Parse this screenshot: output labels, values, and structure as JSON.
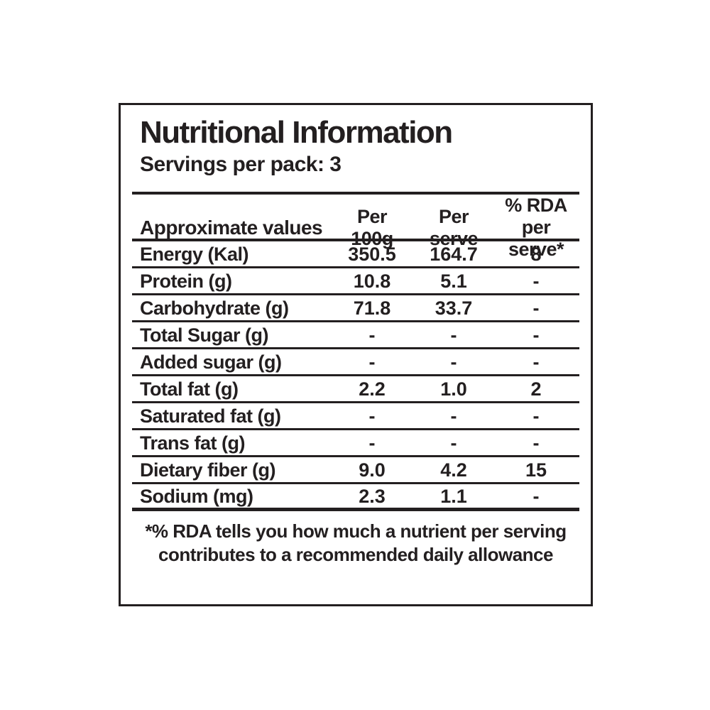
{
  "label": {
    "title": "Nutritional Information",
    "servings": "Servings per pack: 3",
    "table": {
      "header": {
        "col1": "Approximate values",
        "col2_line1": "Per",
        "col2_line2": "100g",
        "col3_line1": "Per",
        "col3_line2": "serve",
        "col4_line1": "% RDA",
        "col4_line2": "per serve*"
      },
      "rows": [
        {
          "name": "Energy (Kal)",
          "per_100g": "350.5",
          "per_serve": "164.7",
          "rda_per_serve": "8"
        },
        {
          "name": "Protein (g)",
          "per_100g": "10.8",
          "per_serve": "5.1",
          "rda_per_serve": "-"
        },
        {
          "name": "Carbohydrate (g)",
          "per_100g": "71.8",
          "per_serve": "33.7",
          "rda_per_serve": "-"
        },
        {
          "name": "Total Sugar (g)",
          "per_100g": "-",
          "per_serve": "-",
          "rda_per_serve": "-"
        },
        {
          "name": "Added sugar (g)",
          "per_100g": "-",
          "per_serve": "-",
          "rda_per_serve": "-"
        },
        {
          "name": "Total fat (g)",
          "per_100g": "2.2",
          "per_serve": "1.0",
          "rda_per_serve": "2"
        },
        {
          "name": "Saturated fat (g)",
          "per_100g": "-",
          "per_serve": "-",
          "rda_per_serve": "-"
        },
        {
          "name": "Trans fat (g)",
          "per_100g": "-",
          "per_serve": "-",
          "rda_per_serve": "-"
        },
        {
          "name": "Dietary fiber (g)",
          "per_100g": "9.0",
          "per_serve": "4.2",
          "rda_per_serve": "15"
        },
        {
          "name": "Sodium (mg)",
          "per_100g": "2.3",
          "per_serve": "1.1",
          "rda_per_serve": "-"
        }
      ]
    },
    "footnote": {
      "line1": "*% RDA tells you how much a nutrient per serving",
      "line2": "contributes to a recommended daily allowance"
    },
    "colors": {
      "text": "#231f20",
      "border": "#231f20",
      "background": "#ffffff"
    }
  }
}
